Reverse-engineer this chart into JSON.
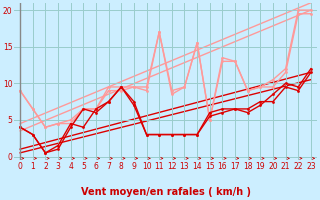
{
  "bg_color": "#cceeff",
  "grid_color": "#99cccc",
  "xlabel": "Vent moyen/en rafales ( km/h )",
  "xlim": [
    -0.5,
    23.5
  ],
  "ylim": [
    -0.5,
    21
  ],
  "xticks": [
    0,
    1,
    2,
    3,
    4,
    5,
    6,
    7,
    8,
    9,
    10,
    11,
    12,
    13,
    14,
    15,
    16,
    17,
    18,
    19,
    20,
    21,
    22,
    23
  ],
  "yticks": [
    0,
    5,
    10,
    15,
    20
  ],
  "series": [
    {
      "x": [
        0,
        1,
        2,
        3,
        4,
        5,
        6,
        7,
        8,
        9,
        10,
        11,
        12,
        13,
        14,
        15,
        16,
        17,
        18,
        19,
        20,
        21,
        22,
        23
      ],
      "y": [
        9.0,
        6.5,
        4.0,
        4.5,
        4.5,
        6.5,
        6.5,
        9.0,
        9.0,
        9.5,
        9.0,
        17.0,
        8.5,
        9.5,
        15.5,
        5.0,
        13.0,
        13.0,
        9.0,
        9.5,
        9.5,
        11.5,
        19.5,
        19.5
      ],
      "color": "#ff9999",
      "lw": 1.0,
      "marker": "o",
      "ms": 2.0,
      "alpha": 1.0,
      "zorder": 2
    },
    {
      "x": [
        0,
        1,
        2,
        3,
        4,
        5,
        6,
        7,
        8,
        9,
        10,
        11,
        12,
        13,
        14,
        15,
        16,
        17,
        18,
        19,
        20,
        21,
        22,
        23
      ],
      "y": [
        9.0,
        6.5,
        4.0,
        4.5,
        5.0,
        6.5,
        6.5,
        9.5,
        9.5,
        9.5,
        9.5,
        17.0,
        9.0,
        9.5,
        15.5,
        5.0,
        13.5,
        13.0,
        9.0,
        9.5,
        10.5,
        12.0,
        20.0,
        20.0
      ],
      "color": "#ff9999",
      "lw": 1.0,
      "marker": "o",
      "ms": 2.0,
      "alpha": 1.0,
      "zorder": 2
    },
    {
      "x": [
        0,
        23
      ],
      "y": [
        3.5,
        20.0
      ],
      "color": "#ff9999",
      "lw": 1.0,
      "marker": null,
      "ms": 0,
      "alpha": 1.0,
      "zorder": 1
    },
    {
      "x": [
        0,
        23
      ],
      "y": [
        4.5,
        21.0
      ],
      "color": "#ff9999",
      "lw": 1.0,
      "marker": null,
      "ms": 0,
      "alpha": 1.0,
      "zorder": 1
    },
    {
      "x": [
        0,
        1,
        2,
        3,
        4,
        5,
        6,
        7,
        8,
        9,
        10,
        11,
        12,
        13,
        14,
        15,
        16,
        17,
        18,
        19,
        20,
        21,
        22,
        23
      ],
      "y": [
        4.0,
        3.0,
        0.5,
        1.0,
        4.0,
        6.5,
        6.0,
        7.5,
        9.5,
        7.5,
        3.0,
        3.0,
        3.0,
        3.0,
        3.0,
        6.0,
        6.5,
        6.5,
        6.5,
        7.5,
        7.5,
        9.5,
        9.0,
        11.5
      ],
      "color": "#dd0000",
      "lw": 1.0,
      "marker": "o",
      "ms": 2.0,
      "alpha": 1.0,
      "zorder": 3
    },
    {
      "x": [
        0,
        1,
        2,
        3,
        4,
        5,
        6,
        7,
        8,
        9,
        10,
        11,
        12,
        13,
        14,
        15,
        16,
        17,
        18,
        19,
        20,
        21,
        22,
        23
      ],
      "y": [
        4.0,
        3.0,
        0.5,
        1.5,
        4.5,
        4.0,
        6.5,
        7.5,
        9.5,
        7.0,
        3.0,
        3.0,
        3.0,
        3.0,
        3.0,
        5.5,
        6.0,
        6.5,
        6.0,
        7.0,
        8.5,
        10.0,
        9.5,
        12.0
      ],
      "color": "#dd0000",
      "lw": 1.0,
      "marker": "o",
      "ms": 2.0,
      "alpha": 1.0,
      "zorder": 3
    },
    {
      "x": [
        0,
        23
      ],
      "y": [
        0.5,
        10.5
      ],
      "color": "#dd0000",
      "lw": 1.0,
      "marker": null,
      "ms": 0,
      "alpha": 1.0,
      "zorder": 1
    },
    {
      "x": [
        0,
        23
      ],
      "y": [
        1.0,
        11.5
      ],
      "color": "#dd0000",
      "lw": 1.0,
      "marker": null,
      "ms": 0,
      "alpha": 1.0,
      "zorder": 1
    }
  ],
  "tick_fontsize": 5.5,
  "label_fontsize": 7,
  "label_color": "#cc0000",
  "yaxis_color": "#888888"
}
